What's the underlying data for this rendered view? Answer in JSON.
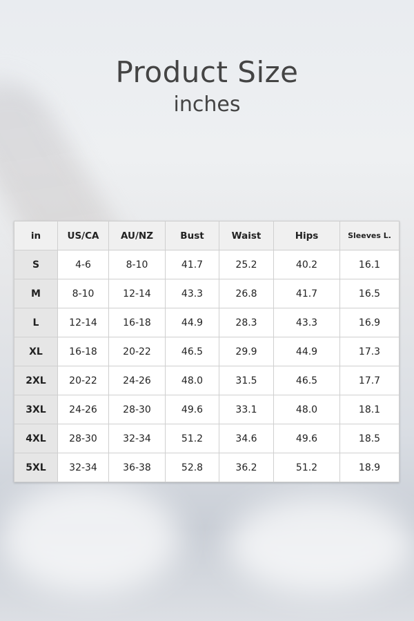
{
  "header": {
    "title": "Product Size",
    "subtitle": "inches"
  },
  "table": {
    "columns": [
      "in",
      "US/CA",
      "AU/NZ",
      "Bust",
      "Waist",
      "Hips",
      "Sleeves L."
    ],
    "rows": [
      [
        "S",
        "4-6",
        "8-10",
        "41.7",
        "25.2",
        "40.2",
        "16.1"
      ],
      [
        "M",
        "8-10",
        "12-14",
        "43.3",
        "26.8",
        "41.7",
        "16.5"
      ],
      [
        "L",
        "12-14",
        "16-18",
        "44.9",
        "28.3",
        "43.3",
        "16.9"
      ],
      [
        "XL",
        "16-18",
        "20-22",
        "46.5",
        "29.9",
        "44.9",
        "17.3"
      ],
      [
        "2XL",
        "20-22",
        "24-26",
        "48.0",
        "31.5",
        "46.5",
        "17.7"
      ],
      [
        "3XL",
        "24-26",
        "28-30",
        "49.6",
        "33.1",
        "48.0",
        "18.1"
      ],
      [
        "4XL",
        "28-30",
        "32-34",
        "51.2",
        "34.6",
        "49.6",
        "18.5"
      ],
      [
        "5XL",
        "32-34",
        "36-38",
        "52.8",
        "36.2",
        "51.2",
        "18.9"
      ]
    ]
  }
}
